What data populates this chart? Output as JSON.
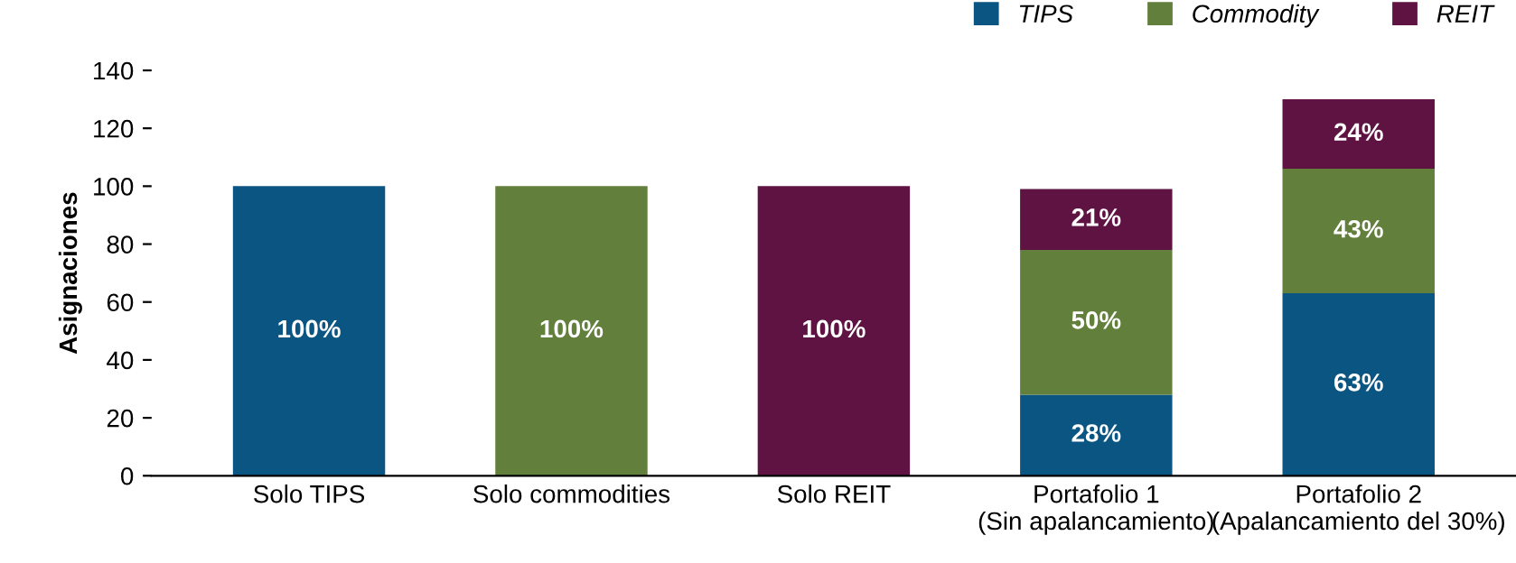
{
  "chart_data": {
    "type": "bar",
    "stacked": true,
    "ylabel": "Asignaciones",
    "categories": [
      "Solo TIPS",
      "Solo commodities",
      "Solo REIT",
      "Portafolio 1\n(Sin apalancamiento)",
      "Portafolio 2\n(Apalancamiento del 30%)"
    ],
    "series": [
      {
        "name": "TIPS",
        "color": "#0b5582",
        "values": [
          100,
          null,
          null,
          28,
          63
        ],
        "value_labels": [
          "100%",
          null,
          null,
          "28%",
          "63%"
        ]
      },
      {
        "name": "Commodity",
        "color": "#62803c",
        "values": [
          null,
          100,
          null,
          50,
          43
        ],
        "value_labels": [
          null,
          "100%",
          null,
          "50%",
          "43%"
        ]
      },
      {
        "name": "REIT",
        "color": "#5e1342",
        "values": [
          null,
          null,
          100,
          21,
          24
        ],
        "value_labels": [
          null,
          null,
          "100%",
          "21%",
          "24%"
        ]
      }
    ],
    "ylim": [
      0,
      140
    ],
    "yticks": [
      0,
      20,
      40,
      60,
      80,
      100,
      120,
      140
    ],
    "grid": false,
    "legend": "top right"
  }
}
